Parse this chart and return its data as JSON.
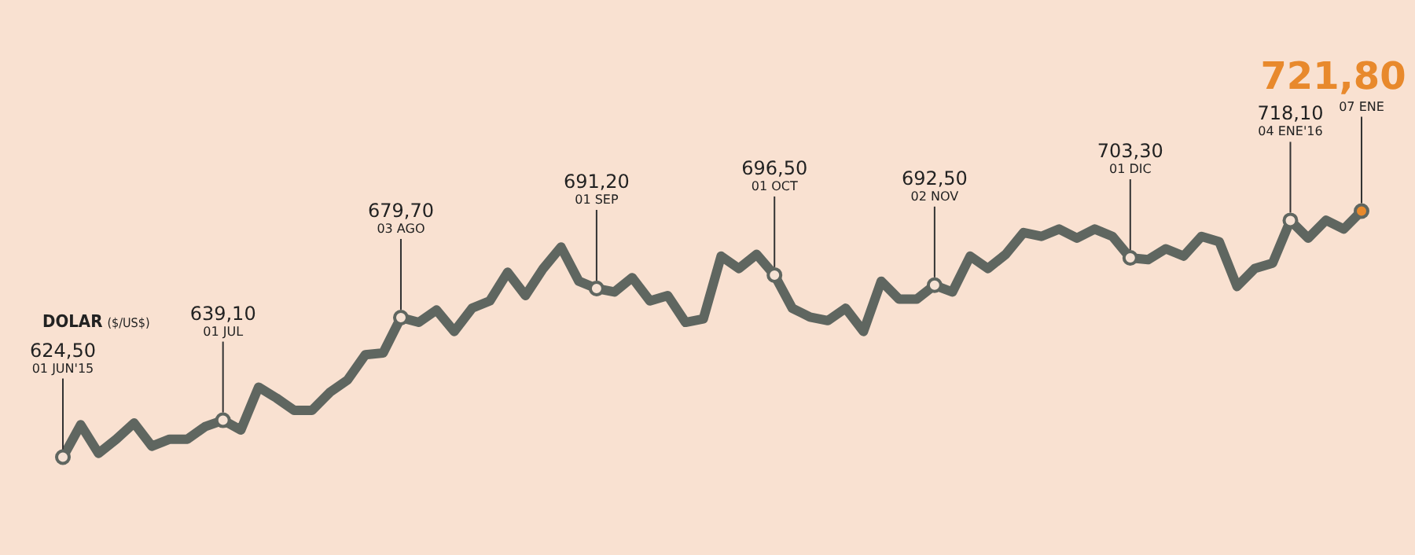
{
  "chart_data": {
    "type": "line",
    "title": "DOLAR",
    "subtitle": "($/US$)",
    "legend": false,
    "categories": [
      null,
      null,
      null,
      null,
      null,
      null,
      null,
      null,
      null,
      null,
      null,
      null,
      null,
      null,
      null,
      null,
      null,
      null,
      null,
      null,
      null,
      null,
      null,
      null,
      null,
      null,
      null,
      null,
      null,
      null,
      null,
      null,
      null,
      null,
      null,
      null,
      null,
      null,
      null,
      null,
      null,
      null,
      null,
      null,
      null,
      null,
      null,
      null,
      null,
      null,
      null,
      null,
      null,
      null,
      null,
      null,
      null,
      null,
      null,
      null,
      null,
      null,
      null,
      null,
      null,
      null,
      null,
      null,
      null,
      null,
      null,
      null,
      null,
      null
    ],
    "annotations": [
      {
        "text": "01 JUN'15",
        "y": 624.5
      },
      {
        "text": "01 JUL",
        "y": 639.1
      },
      {
        "text": "03 AGO",
        "y": 679.7
      },
      {
        "text": "01 SEP",
        "y": 691.2
      },
      {
        "text": "01 OCT",
        "y": 696.5
      },
      {
        "text": "02 NOV",
        "y": 692.5
      },
      {
        "text": "01 DIC",
        "y": 703.3
      },
      {
        "text": "04 ENE'16",
        "y": 718.1
      },
      {
        "text": "07 ENE",
        "y": 721.8
      }
    ],
    "series": [
      {
        "color": "#5f6660",
        "values": [
          624.5,
          637.3,
          626.0,
          631.6,
          638.0,
          628.8,
          631.6,
          631.6,
          636.6,
          639.1,
          635.2,
          652.2,
          647.9,
          643.0,
          643.0,
          650.1,
          655.0,
          665.0,
          665.7,
          679.7,
          677.8,
          682.7,
          674.2,
          683.4,
          686.3,
          697.6,
          688.4,
          699.1,
          707.6,
          694.1,
          691.2,
          689.8,
          695.5,
          686.3,
          688.4,
          677.8,
          679.2,
          704.0,
          699.1,
          704.7,
          696.5,
          683.4,
          679.9,
          678.5,
          683.4,
          674.2,
          694.1,
          687.0,
          687.0,
          692.5,
          689.8,
          704.0,
          699.1,
          704.7,
          713.3,
          711.8,
          714.7,
          711.1,
          714.7,
          711.8,
          703.3,
          702.6,
          706.9,
          704.0,
          711.8,
          709.7,
          692.0,
          699.1,
          701.2,
          718.1,
          711.1,
          718.2,
          714.7,
          721.8
        ],
        "value_labels": [
          "624,50",
          null,
          null,
          null,
          null,
          null,
          null,
          null,
          null,
          "639,10",
          null,
          null,
          null,
          null,
          null,
          null,
          null,
          null,
          null,
          "679,70",
          null,
          null,
          null,
          null,
          null,
          null,
          null,
          null,
          null,
          null,
          "691,20",
          null,
          null,
          null,
          null,
          null,
          null,
          null,
          null,
          null,
          "696,50",
          null,
          null,
          null,
          null,
          null,
          null,
          null,
          null,
          "692,50",
          null,
          null,
          null,
          null,
          null,
          null,
          null,
          null,
          null,
          null,
          "703,30",
          null,
          null,
          null,
          null,
          null,
          null,
          null,
          null,
          "718,10",
          null,
          null,
          null,
          "721,80"
        ],
        "colors": [
          "#f6e2d4",
          null,
          null,
          null,
          null,
          null,
          null,
          null,
          null,
          "#f6e2d4",
          null,
          null,
          null,
          null,
          null,
          null,
          null,
          null,
          null,
          "#f6e2d4",
          null,
          null,
          null,
          null,
          null,
          null,
          null,
          null,
          null,
          null,
          "#f6e2d4",
          null,
          null,
          null,
          null,
          null,
          null,
          null,
          null,
          null,
          "#f6e2d4",
          null,
          null,
          null,
          null,
          null,
          null,
          null,
          null,
          "#f6e2d4",
          null,
          null,
          null,
          null,
          null,
          null,
          null,
          null,
          null,
          null,
          "#f6e2d4",
          null,
          null,
          null,
          null,
          null,
          null,
          null,
          null,
          "#f6e2d4",
          null,
          null,
          null,
          "#e8892c"
        ]
      }
    ]
  }
}
